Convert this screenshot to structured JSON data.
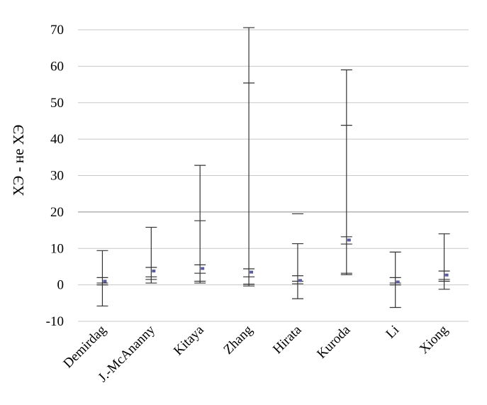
{
  "chart_data": {
    "type": "box",
    "title": "",
    "xlabel": "",
    "ylabel": "ХЭ - не ХЭ",
    "ylim": [
      -10,
      70
    ],
    "yticks": [
      -10,
      0,
      10,
      20,
      30,
      40,
      50,
      60,
      70
    ],
    "ytick_labels": [
      "-10",
      "0",
      "10",
      "20",
      "30",
      "40",
      "50",
      "60",
      "70"
    ],
    "grid": true,
    "categories": [
      "Demirdag",
      "J.-McAnanny",
      "Kitaya",
      "Zhang",
      "Hirata",
      "Kuroda",
      "Li",
      "Xiong"
    ],
    "series": [
      {
        "min": [
          -5.8,
          0.5,
          0.5,
          -0.3,
          -3.8,
          2.8,
          -6.2,
          -1.2
        ],
        "q1": [
          0.0,
          1.5,
          1.0,
          0.2,
          0.3,
          3.2,
          0.0,
          1.0
        ],
        "median": [
          0.5,
          2.2,
          3.2,
          2.2,
          1.0,
          11.2,
          0.5,
          1.5
        ],
        "q3": [
          2.0,
          4.8,
          5.5,
          4.4,
          2.5,
          13.2,
          2.0,
          3.8
        ],
        "max": [
          9.4,
          15.8,
          32.8,
          70.6,
          11.3,
          59.0,
          9.0,
          14.0
        ],
        "mean": [
          1.0,
          3.8,
          4.5,
          3.5,
          1.2,
          12.3,
          0.8,
          2.7
        ],
        "extra": [
          null,
          null,
          17.6,
          55.4,
          19.5,
          43.8,
          null,
          null
        ]
      }
    ]
  },
  "colors": {
    "whisker": "#333333",
    "mean_marker": "#5b5b9e",
    "gridline": "#c8c8c8",
    "gridline_major": "#8c8c8c"
  }
}
